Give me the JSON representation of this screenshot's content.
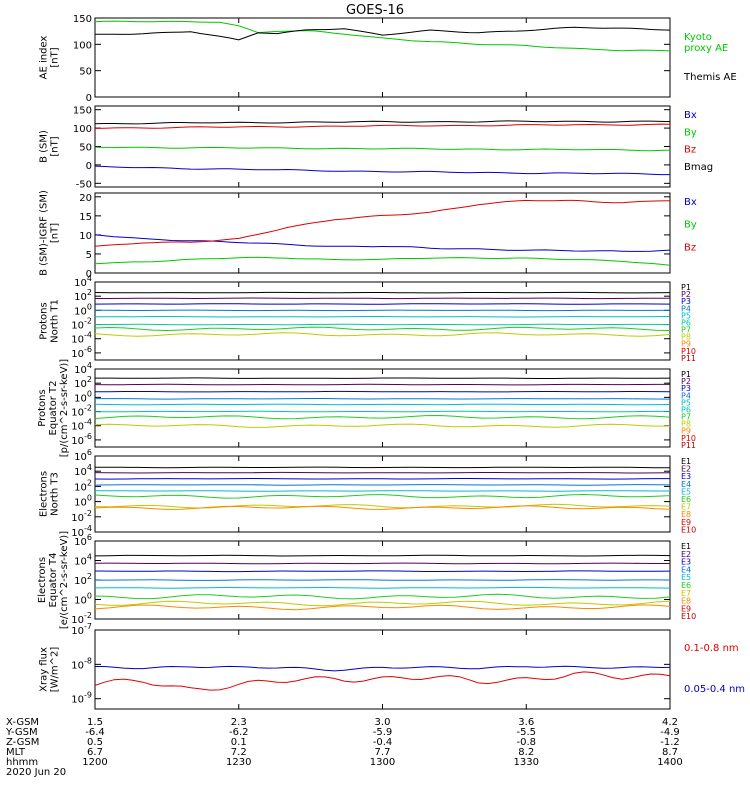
{
  "title": "GOES-16",
  "colors": {
    "black": "#000000",
    "red": "#e00000",
    "green": "#00c800",
    "blue": "#0000cc"
  },
  "chart_data": [
    {
      "type": "line",
      "ylabel": [
        "AE index",
        "[nT]"
      ],
      "ylim": [
        0,
        150
      ],
      "ytick_values": [
        0,
        50,
        100,
        150
      ],
      "ytick_labels": [
        "0",
        "50",
        "100",
        "150"
      ],
      "x": [
        0,
        10,
        20,
        26,
        30,
        34,
        38,
        45,
        52,
        60,
        70,
        80,
        90,
        100,
        110,
        120
      ],
      "series": [
        {
          "name": "Kyoto proxy AE",
          "label_lines": [
            "Kyoto",
            "proxy AE"
          ],
          "color": "#00c800",
          "values": [
            143,
            143,
            143,
            143,
            135,
            122,
            125,
            125,
            120,
            112,
            105,
            100,
            98,
            92,
            88,
            88
          ]
        },
        {
          "name": "Themis AE",
          "label_lines": [
            "Themis AE"
          ],
          "color": "#000000",
          "values": [
            118,
            120,
            125,
            115,
            108,
            122,
            120,
            128,
            130,
            118,
            126,
            122,
            127,
            132,
            130,
            128
          ]
        }
      ]
    },
    {
      "type": "line",
      "ylabel": [
        "B (SM)",
        "[nT]"
      ],
      "ylim": [
        -60,
        160
      ],
      "ytick_values": [
        -50,
        0,
        50,
        100,
        150
      ],
      "ytick_labels": [
        "-50",
        "0",
        "50",
        "100",
        "150"
      ],
      "x": [
        0,
        30,
        60,
        90,
        120
      ],
      "series": [
        {
          "name": "Bx",
          "color": "#0000cc",
          "values": [
            -5,
            -12,
            -18,
            -22,
            -25
          ]
        },
        {
          "name": "By",
          "color": "#00c800",
          "values": [
            48,
            46,
            44,
            42,
            40
          ]
        },
        {
          "name": "Bz",
          "color": "#e00000",
          "values": [
            100,
            103,
            106,
            108,
            110
          ]
        },
        {
          "name": "Bmag",
          "color": "#000000",
          "values": [
            112,
            115,
            117,
            118,
            118
          ]
        }
      ]
    },
    {
      "type": "line",
      "ylabel": [
        "B (SM)-IGRF (SM)",
        "[nT]"
      ],
      "ylim": [
        0,
        21
      ],
      "ytick_values": [
        0,
        5,
        10,
        15,
        20
      ],
      "ytick_labels": [
        "0",
        "5",
        "10",
        "15",
        "20"
      ],
      "x": [
        0,
        10,
        20,
        30,
        40,
        50,
        60,
        70,
        80,
        90,
        100,
        110,
        120
      ],
      "series": [
        {
          "name": "Bx",
          "color": "#0000cc",
          "values": [
            10,
            9,
            8.5,
            8,
            7.5,
            7,
            7,
            6.5,
            6.3,
            6,
            5.8,
            5.7,
            6
          ]
        },
        {
          "name": "By",
          "color": "#00c800",
          "values": [
            2.5,
            3,
            3.5,
            4,
            4,
            3.5,
            3.5,
            4,
            4,
            3.8,
            3.5,
            3.2,
            2
          ]
        },
        {
          "name": "Bz",
          "color": "#e00000",
          "values": [
            7,
            8,
            8,
            9,
            12,
            14,
            15,
            16,
            18,
            19,
            19,
            18.5,
            19
          ]
        }
      ]
    },
    {
      "type": "line",
      "log": true,
      "ylabel": [
        "Protons",
        "North T1"
      ],
      "ylim_exp": [
        -7,
        4
      ],
      "ytick_exps": [
        -6,
        -4,
        -2,
        0,
        2,
        4
      ],
      "ytick_labels": [
        "10^-6",
        "10^-4",
        "10^-2",
        "10^0",
        "10^2",
        "10^4"
      ],
      "channels": [
        {
          "name": "P1",
          "color": "#000000",
          "level": 2.5
        },
        {
          "name": "P2",
          "color": "#550055",
          "level": 1.7
        },
        {
          "name": "P3",
          "color": "#0000cc",
          "level": 0.9
        },
        {
          "name": "P4",
          "color": "#0077dd",
          "level": 0.0
        },
        {
          "name": "P5",
          "color": "#00bbcc",
          "level": -0.9
        },
        {
          "name": "P6",
          "color": "#00c8a0",
          "level": -2.0
        },
        {
          "name": "P7",
          "color": "#22cc22",
          "level": -2.6
        },
        {
          "name": "P8",
          "color": "#bbcc00",
          "level": -3.4
        },
        {
          "name": "P9",
          "color": "#ff8800",
          "level": null
        },
        {
          "name": "P10",
          "color": "#dd0000",
          "level": null
        },
        {
          "name": "P11",
          "color": "#bb0000",
          "level": null
        }
      ]
    },
    {
      "type": "line",
      "log": true,
      "ylabel": [
        "Protons",
        "Equator T2",
        "[p/(cm^2-s-sr-keV)]"
      ],
      "ylim_exp": [
        -7,
        4
      ],
      "ytick_exps": [
        -6,
        -4,
        -2,
        0,
        2,
        4
      ],
      "ytick_labels": [
        "10^-6",
        "10^-4",
        "10^-2",
        "10^0",
        "10^2",
        "10^4"
      ],
      "channels": [
        {
          "name": "P1",
          "color": "#000000",
          "level": 2.7
        },
        {
          "name": "P2",
          "color": "#550055",
          "level": 1.8
        },
        {
          "name": "P3",
          "color": "#0000cc",
          "level": 0.8
        },
        {
          "name": "P4",
          "color": "#0077dd",
          "level": -0.2
        },
        {
          "name": "P5",
          "color": "#00bbcc",
          "level": -1.0
        },
        {
          "name": "P6",
          "color": "#00c8a0",
          "level": -2.0
        },
        {
          "name": "P7",
          "color": "#22cc22",
          "level": -2.8
        },
        {
          "name": "P8",
          "color": "#bbcc00",
          "level": -4.0
        },
        {
          "name": "P9",
          "color": "#ff8800",
          "level": null
        },
        {
          "name": "P10",
          "color": "#dd0000",
          "level": null
        },
        {
          "name": "P11",
          "color": "#bb0000",
          "level": null
        }
      ]
    },
    {
      "type": "line",
      "log": true,
      "ylabel": [
        "Electrons",
        "North T3"
      ],
      "ylim_exp": [
        -4,
        6
      ],
      "ytick_exps": [
        -4,
        -2,
        0,
        2,
        4,
        6
      ],
      "ytick_labels": [
        "10^-4",
        "10^-2",
        "10^0",
        "10^2",
        "10^4",
        "10^6"
      ],
      "channels": [
        {
          "name": "E1",
          "color": "#000000",
          "level": 4.5
        },
        {
          "name": "E2",
          "color": "#550055",
          "level": 3.8
        },
        {
          "name": "E3",
          "color": "#0000cc",
          "level": 3.0
        },
        {
          "name": "E4",
          "color": "#0077dd",
          "level": 2.2
        },
        {
          "name": "E5",
          "color": "#00bbcc",
          "level": 1.4
        },
        {
          "name": "E6",
          "color": "#22cc22",
          "level": 0.7
        },
        {
          "name": "E7",
          "color": "#bbcc00",
          "level": -0.6
        },
        {
          "name": "E8",
          "color": "#ff8800",
          "level": -0.8
        },
        {
          "name": "E9",
          "color": "#dd0000",
          "level": null
        },
        {
          "name": "E10",
          "color": "#bb0000",
          "level": null
        }
      ]
    },
    {
      "type": "line",
      "log": true,
      "ylabel": [
        "Electrons",
        "Equator T4",
        "[e/(cm^2-s-sr-keV)]"
      ],
      "ylim_exp": [
        -2,
        6
      ],
      "ytick_exps": [
        -2,
        0,
        2,
        4,
        6
      ],
      "ytick_labels": [
        "10^-2",
        "10^0",
        "10^2",
        "10^4",
        "10^6"
      ],
      "channels": [
        {
          "name": "E1",
          "color": "#000000",
          "level": 4.5
        },
        {
          "name": "E2",
          "color": "#550055",
          "level": 3.7
        },
        {
          "name": "E3",
          "color": "#0000cc",
          "level": 2.9
        },
        {
          "name": "E4",
          "color": "#0077dd",
          "level": 2.0
        },
        {
          "name": "E5",
          "color": "#00bbcc",
          "level": 1.2
        },
        {
          "name": "E6",
          "color": "#22cc22",
          "level": 0.3
        },
        {
          "name": "E7",
          "color": "#bbcc00",
          "level": -0.4
        },
        {
          "name": "E8",
          "color": "#ff8800",
          "level": -0.8
        },
        {
          "name": "E9",
          "color": "#dd0000",
          "level": null
        },
        {
          "name": "E10",
          "color": "#bb0000",
          "level": null
        }
      ]
    },
    {
      "type": "line",
      "log": true,
      "ylabel": [
        "Xray flux",
        "[W/m^2]"
      ],
      "ylim_exp": [
        -9.3,
        -7
      ],
      "ytick_exps": [
        -9,
        -8,
        -7
      ],
      "ytick_labels": [
        "10^-9",
        "10^-8",
        "10^-7"
      ],
      "x": [
        0,
        10,
        20,
        30,
        40,
        50,
        60,
        70,
        80,
        90,
        100,
        110,
        120
      ],
      "series": [
        {
          "name": "0.1-0.8 nm",
          "color": "#e00000",
          "values": [
            -8.6,
            -8.5,
            -8.7,
            -8.6,
            -8.5,
            -8.4,
            -8.4,
            -8.4,
            -8.5,
            -8.4,
            -8.3,
            -8.4,
            -8.3
          ]
        },
        {
          "name": "0.05-0.4 nm",
          "color": "#0000cc",
          "values": [
            -8.1,
            -8.1,
            -8.05,
            -8.1,
            -8.1,
            -8.15,
            -8.1,
            -8.1,
            -8.1,
            -8.05,
            -8.1,
            -8.1,
            -8.05
          ]
        }
      ]
    }
  ],
  "x_axis": {
    "labels": [
      "X-GSM",
      "Y-GSM",
      "Z-GSM",
      "MLT",
      "hhmm",
      "2020 Jun 20"
    ],
    "columns": [
      {
        "minute": 0,
        "values": [
          "1.5",
          "-6.4",
          "0.5",
          "6.7",
          "1200"
        ]
      },
      {
        "minute": 30,
        "values": [
          "2.3",
          "-6.2",
          "0.1",
          "7.2",
          "1230"
        ]
      },
      {
        "minute": 60,
        "values": [
          "3.0",
          "-5.9",
          "-0.4",
          "7.7",
          "1300"
        ]
      },
      {
        "minute": 90,
        "values": [
          "3.6",
          "-5.5",
          "-0.8",
          "8.2",
          "1330"
        ]
      },
      {
        "minute": 120,
        "values": [
          "4.2",
          "-4.9",
          "-1.2",
          "8.7",
          "1400"
        ]
      }
    ]
  }
}
